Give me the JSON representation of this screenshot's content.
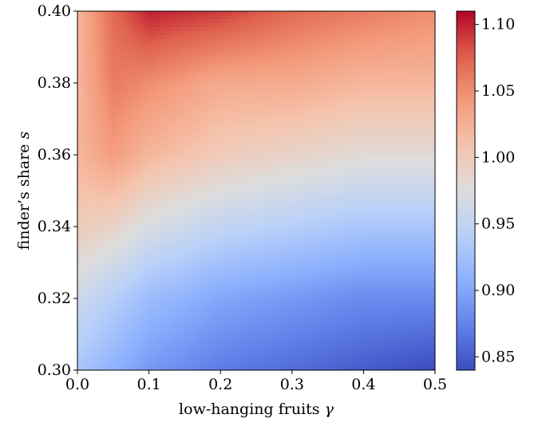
{
  "chart_data": {
    "type": "heatmap",
    "x_range": [
      0.0,
      0.5
    ],
    "y_range": [
      0.3,
      0.4
    ],
    "x_ticks": [
      "0.0",
      "0.1",
      "0.2",
      "0.3",
      "0.4",
      "0.5"
    ],
    "y_ticks": [
      "0.30",
      "0.32",
      "0.34",
      "0.36",
      "0.38",
      "0.40"
    ],
    "xlabel_text": "low-hanging fruits ",
    "xlabel_symbol": "γ",
    "ylabel_text": "finder’s share ",
    "ylabel_symbol": "s",
    "colorbar": {
      "range": [
        0.84,
        1.11
      ],
      "ticks": [
        "0.85",
        "0.90",
        "0.95",
        "1.00",
        "1.05",
        "1.10"
      ],
      "colormap": "coolwarm"
    },
    "grid": false,
    "samples": {
      "gamma": [
        0.0,
        0.05,
        0.1,
        0.2,
        0.3,
        0.4,
        0.5
      ],
      "rows": [
        {
          "s": 0.4,
          "values": [
            1.02,
            1.07,
            1.1,
            1.09,
            1.07,
            1.06,
            1.05
          ]
        },
        {
          "s": 0.38,
          "values": [
            1.02,
            1.06,
            1.05,
            1.03,
            1.03,
            1.02,
            1.02
          ]
        },
        {
          "s": 0.36,
          "values": [
            1.02,
            1.04,
            1.02,
            1.0,
            0.99,
            0.98,
            0.98
          ]
        },
        {
          "s": 0.34,
          "values": [
            1.0,
            0.99,
            0.97,
            0.95,
            0.94,
            0.93,
            0.93
          ]
        },
        {
          "s": 0.32,
          "values": [
            0.96,
            0.94,
            0.92,
            0.9,
            0.89,
            0.88,
            0.88
          ]
        },
        {
          "s": 0.3,
          "values": [
            0.93,
            0.91,
            0.89,
            0.87,
            0.86,
            0.85,
            0.84
          ]
        }
      ]
    }
  }
}
